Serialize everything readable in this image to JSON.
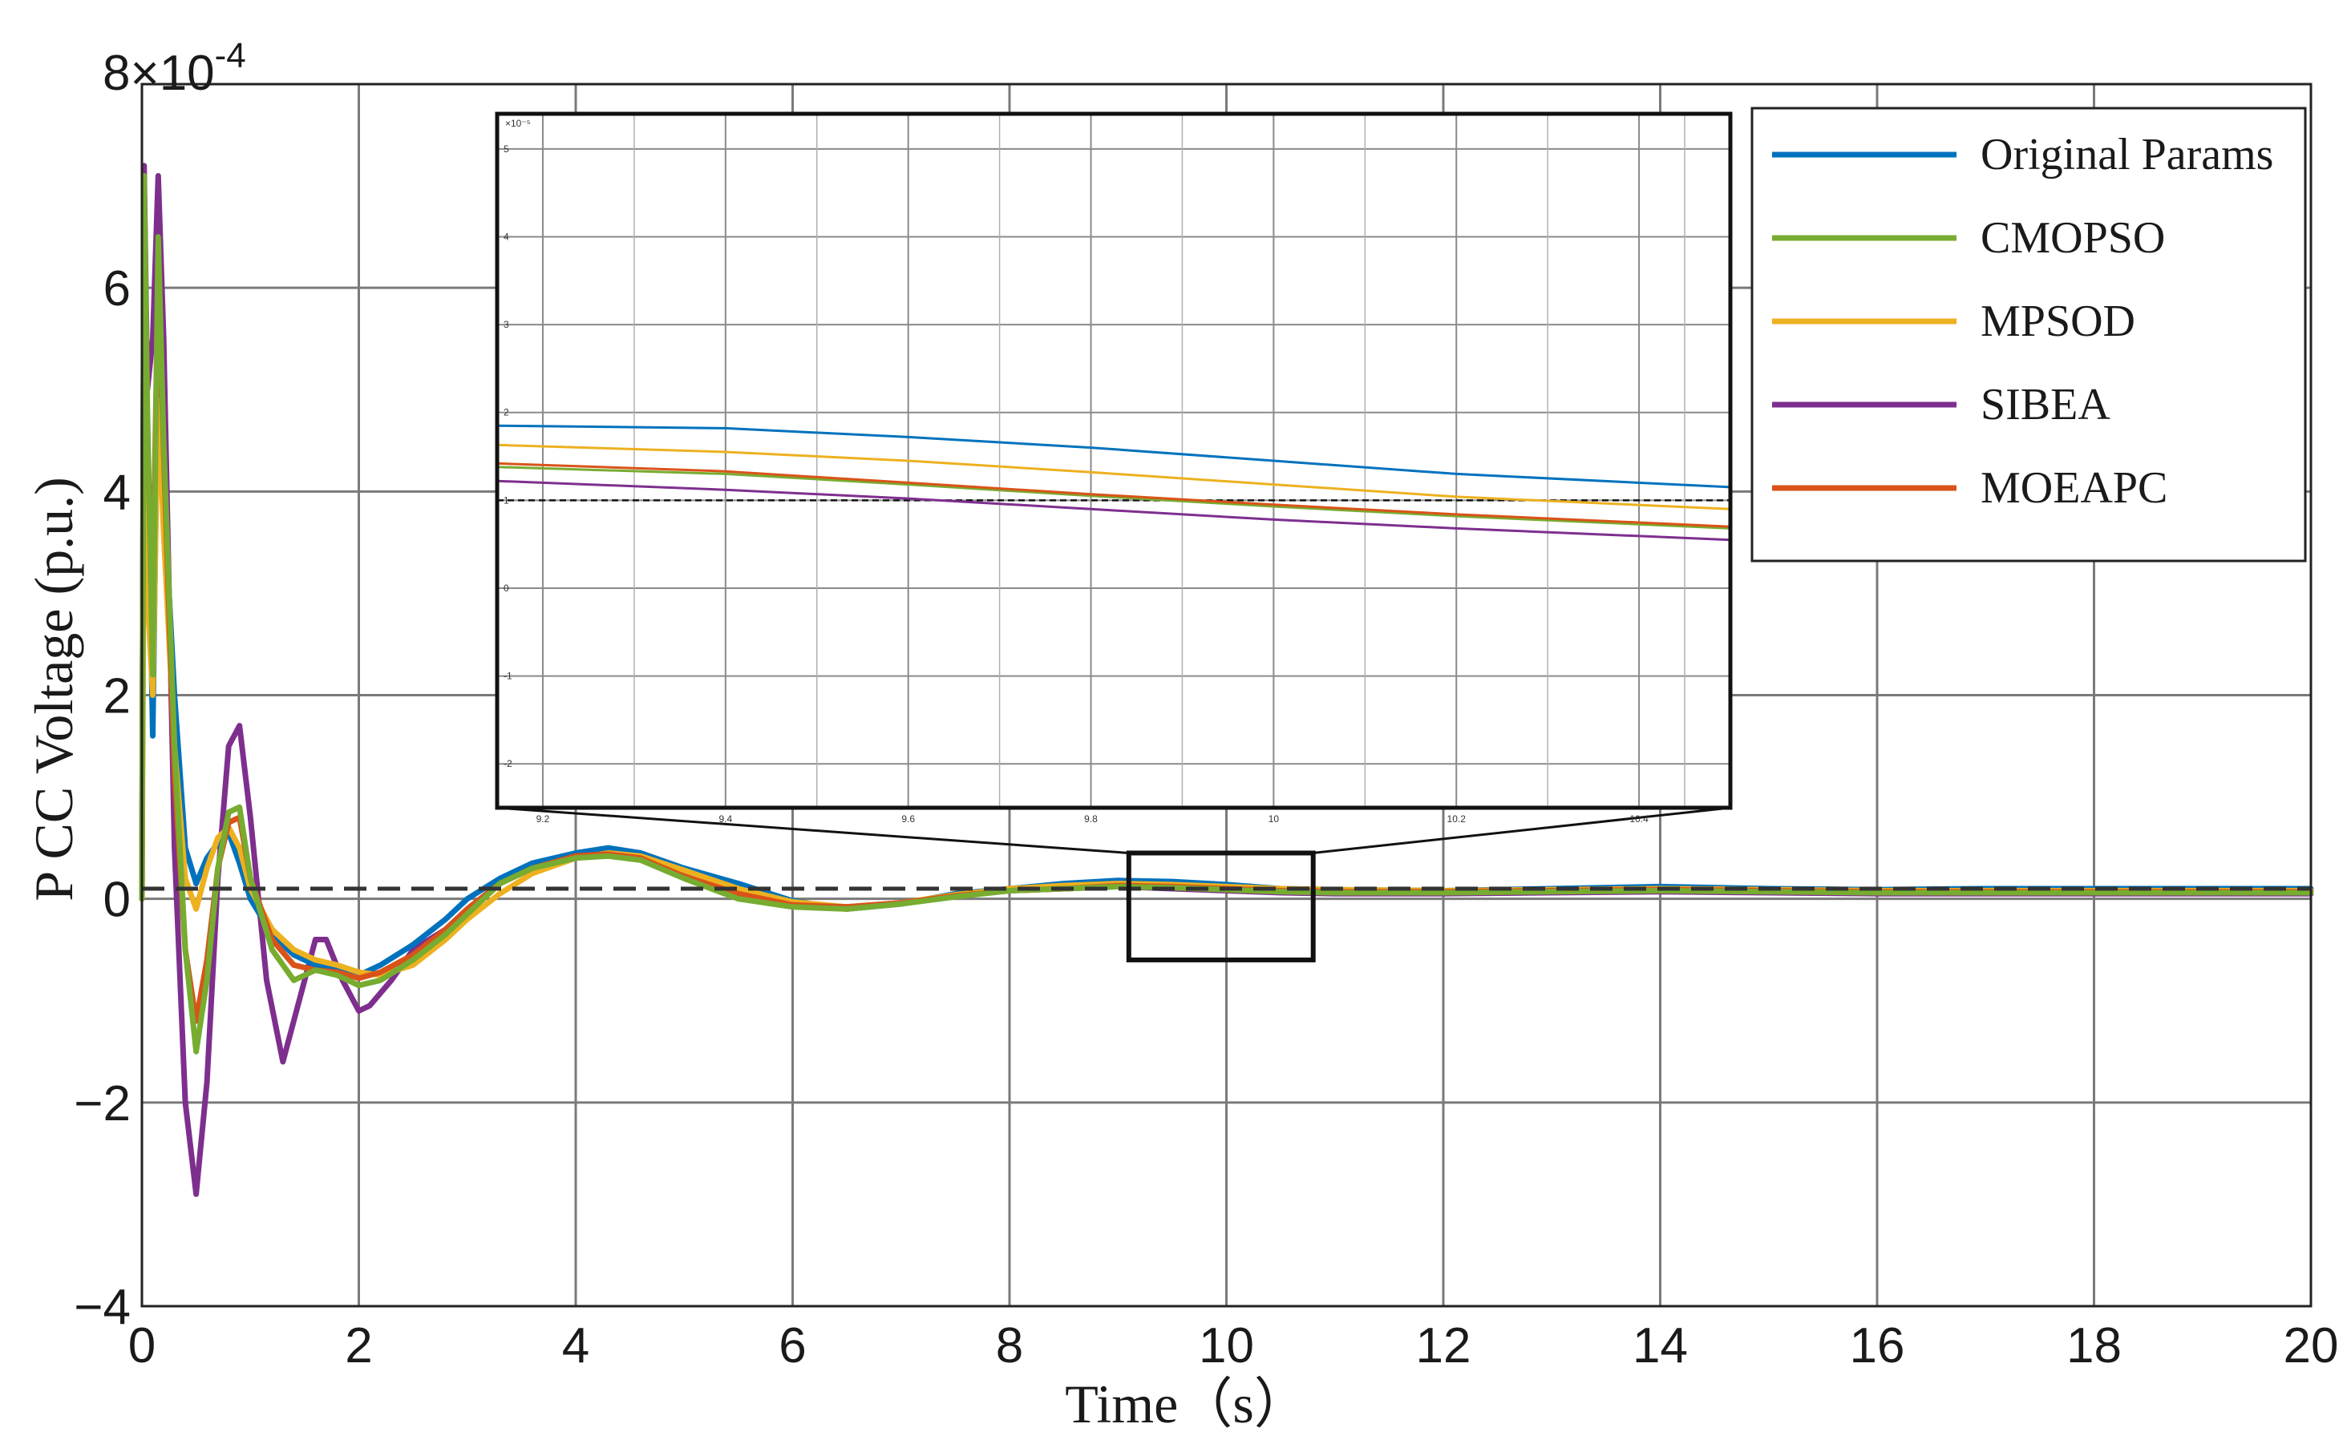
{
  "chart_data": {
    "type": "line",
    "xlabel": "Time（s）",
    "ylabel": "P CC Voltage (p.u.)",
    "y_exponent": "8×10-4",
    "xlim": [
      0,
      20
    ],
    "ylim": [
      -4,
      8
    ],
    "y_scale_note": "values in units of 1e-4 p.u.",
    "x_ticks": [
      "0",
      "2",
      "4",
      "6",
      "8",
      "10",
      "12",
      "14",
      "16",
      "18",
      "20"
    ],
    "y_ticks": [
      "−4",
      "−2",
      "0",
      "2",
      "4",
      "6"
    ],
    "grid": true,
    "legend_position": "top-right",
    "reference_line": {
      "y": 0.1,
      "style": "dashed"
    },
    "zoom_box": {
      "x": [
        9.1,
        10.8
      ],
      "y": [
        -0.6,
        0.45
      ]
    },
    "series": [
      {
        "name": "Original Params",
        "color": "#0072BD",
        "x": [
          0,
          0.02,
          0.05,
          0.1,
          0.15,
          0.2,
          0.3,
          0.4,
          0.5,
          0.6,
          0.7,
          0.8,
          0.9,
          1.0,
          1.2,
          1.4,
          1.6,
          1.8,
          2.0,
          2.2,
          2.5,
          2.8,
          3.0,
          3.3,
          3.6,
          4.0,
          4.3,
          4.6,
          5.0,
          5.5,
          6.0,
          6.5,
          7.0,
          7.5,
          8.0,
          8.5,
          9.0,
          9.5,
          10.0,
          10.5,
          11.0,
          12.0,
          13.0,
          14.0,
          15.0,
          16.0,
          17.0,
          18.0,
          19.0,
          20.0
        ],
        "y": [
          0,
          6.9,
          4.5,
          1.6,
          5.5,
          4.0,
          2.0,
          0.5,
          0.15,
          0.4,
          0.55,
          0.65,
          0.35,
          0.0,
          -0.35,
          -0.55,
          -0.65,
          -0.7,
          -0.75,
          -0.65,
          -0.45,
          -0.2,
          0.0,
          0.2,
          0.35,
          0.45,
          0.5,
          0.45,
          0.3,
          0.15,
          -0.02,
          -0.1,
          -0.05,
          0.05,
          0.1,
          0.15,
          0.18,
          0.17,
          0.14,
          0.1,
          0.09,
          0.08,
          0.1,
          0.12,
          0.1,
          0.09,
          0.1,
          0.1,
          0.1,
          0.1
        ]
      },
      {
        "name": "CMOPSO",
        "color": "#77AC30",
        "x": [
          0,
          0.02,
          0.05,
          0.1,
          0.15,
          0.2,
          0.3,
          0.4,
          0.5,
          0.6,
          0.7,
          0.8,
          0.9,
          1.0,
          1.2,
          1.4,
          1.6,
          1.8,
          2.0,
          2.2,
          2.5,
          2.8,
          3.0,
          3.3,
          3.6,
          4.0,
          4.3,
          4.6,
          5.0,
          5.5,
          6.0,
          6.5,
          7.0,
          7.5,
          8.0,
          8.5,
          9.0,
          9.5,
          10.0,
          10.5,
          11.0,
          12.0,
          13.0,
          14.0,
          15.0,
          16.0,
          17.0,
          18.0,
          19.0,
          20.0
        ],
        "y": [
          0,
          7.1,
          4.8,
          2.2,
          6.5,
          4.5,
          1.5,
          -0.5,
          -1.5,
          -0.8,
          0.3,
          0.85,
          0.9,
          0.2,
          -0.5,
          -0.8,
          -0.7,
          -0.75,
          -0.85,
          -0.8,
          -0.6,
          -0.35,
          -0.15,
          0.15,
          0.3,
          0.4,
          0.42,
          0.38,
          0.2,
          0.0,
          -0.08,
          -0.1,
          -0.05,
          0.02,
          0.08,
          0.1,
          0.12,
          0.11,
          0.09,
          0.07,
          0.06,
          0.06,
          0.07,
          0.08,
          0.07,
          0.06,
          0.06,
          0.06,
          0.06,
          0.06
        ]
      },
      {
        "name": "MPSOD",
        "color": "#EDB120",
        "x": [
          0,
          0.02,
          0.05,
          0.1,
          0.15,
          0.2,
          0.3,
          0.4,
          0.5,
          0.6,
          0.7,
          0.8,
          0.9,
          1.0,
          1.2,
          1.4,
          1.6,
          1.8,
          2.0,
          2.2,
          2.5,
          2.8,
          3.0,
          3.3,
          3.6,
          4.0,
          4.3,
          4.6,
          5.0,
          5.5,
          6.0,
          6.5,
          7.0,
          7.5,
          8.0,
          8.5,
          9.0,
          9.5,
          10.0,
          10.5,
          11.0,
          12.0,
          13.0,
          14.0,
          15.0,
          16.0,
          17.0,
          18.0,
          19.0,
          20.0
        ],
        "y": [
          0,
          4.5,
          3.0,
          2.0,
          4.9,
          3.6,
          1.5,
          0.2,
          -0.1,
          0.3,
          0.6,
          0.7,
          0.5,
          0.1,
          -0.3,
          -0.5,
          -0.6,
          -0.65,
          -0.72,
          -0.75,
          -0.65,
          -0.4,
          -0.2,
          0.05,
          0.25,
          0.4,
          0.45,
          0.42,
          0.28,
          0.1,
          -0.03,
          -0.08,
          -0.04,
          0.04,
          0.1,
          0.13,
          0.15,
          0.14,
          0.12,
          0.1,
          0.09,
          0.08,
          0.09,
          0.1,
          0.09,
          0.08,
          0.08,
          0.08,
          0.08,
          0.08
        ]
      },
      {
        "name": "SIBEA",
        "color": "#7E2F8E",
        "x": [
          0,
          0.02,
          0.05,
          0.1,
          0.15,
          0.2,
          0.3,
          0.4,
          0.5,
          0.6,
          0.7,
          0.8,
          0.9,
          1.0,
          1.15,
          1.3,
          1.45,
          1.6,
          1.7,
          1.85,
          2.0,
          2.1,
          2.3,
          2.5,
          2.8,
          3.0,
          3.3,
          3.6,
          4.0,
          4.3,
          4.6,
          5.0,
          5.5,
          6.0,
          6.5,
          7.0,
          7.5,
          8.0,
          8.5,
          9.0,
          9.5,
          10.0,
          10.5,
          11.0,
          12.0,
          13.0,
          14.0,
          15.0,
          16.0,
          17.0,
          18.0,
          19.0,
          20.0
        ],
        "y": [
          0,
          7.2,
          5.0,
          5.5,
          7.1,
          5.5,
          0.5,
          -2.0,
          -2.9,
          -1.8,
          0.2,
          1.5,
          1.7,
          0.8,
          -0.8,
          -1.6,
          -1.0,
          -0.4,
          -0.4,
          -0.8,
          -1.1,
          -1.05,
          -0.8,
          -0.5,
          -0.3,
          -0.1,
          0.15,
          0.3,
          0.42,
          0.45,
          0.4,
          0.25,
          0.08,
          -0.05,
          -0.08,
          -0.04,
          0.03,
          0.08,
          0.1,
          0.12,
          0.1,
          0.08,
          0.06,
          0.05,
          0.05,
          0.06,
          0.07,
          0.06,
          0.05,
          0.05,
          0.05,
          0.05,
          0.05
        ]
      },
      {
        "name": "MOEAPC",
        "color": "#D95319",
        "x": [
          0,
          0.02,
          0.05,
          0.1,
          0.15,
          0.2,
          0.3,
          0.4,
          0.5,
          0.6,
          0.7,
          0.8,
          0.9,
          1.0,
          1.2,
          1.4,
          1.6,
          1.8,
          2.0,
          2.2,
          2.5,
          2.8,
          3.0,
          3.3,
          3.6,
          4.0,
          4.3,
          4.6,
          5.0,
          5.5,
          6.0,
          6.5,
          7.0,
          7.5,
          8.0,
          8.5,
          9.0,
          9.5,
          10.0,
          10.5,
          11.0,
          12.0,
          13.0,
          14.0,
          15.0,
          16.0,
          17.0,
          18.0,
          19.0,
          20.0
        ],
        "y": [
          0,
          6.5,
          4.5,
          3.0,
          6.2,
          4.4,
          1.2,
          -0.5,
          -1.2,
          -0.6,
          0.3,
          0.75,
          0.8,
          0.2,
          -0.4,
          -0.65,
          -0.7,
          -0.72,
          -0.78,
          -0.72,
          -0.55,
          -0.3,
          -0.1,
          0.15,
          0.3,
          0.42,
          0.44,
          0.4,
          0.22,
          0.05,
          -0.06,
          -0.08,
          -0.04,
          0.03,
          0.08,
          0.1,
          0.13,
          0.12,
          0.1,
          0.08,
          0.07,
          0.07,
          0.08,
          0.09,
          0.08,
          0.07,
          0.07,
          0.07,
          0.07,
          0.07
        ]
      }
    ],
    "inset": {
      "y_exponent": "×10⁻⁵",
      "xlim": [
        9.15,
        10.5
      ],
      "ylim": [
        -2.5,
        5.4
      ],
      "x_ticks": [
        "9.2",
        "9.4",
        "9.6",
        "9.8",
        "10",
        "10.2",
        "10.4"
      ],
      "y_ticks": [
        "-2",
        "-1",
        "0",
        "1",
        "2",
        "3",
        "4",
        "5"
      ],
      "reference_line": {
        "y": 1.0
      },
      "series": [
        {
          "name": "Original Params",
          "color": "#0072BD",
          "x": [
            9.15,
            9.4,
            9.6,
            9.8,
            10.0,
            10.2,
            10.5
          ],
          "y": [
            1.85,
            1.82,
            1.72,
            1.6,
            1.45,
            1.3,
            1.15
          ]
        },
        {
          "name": "CMOPSO",
          "color": "#77AC30",
          "x": [
            9.15,
            9.4,
            9.6,
            9.8,
            10.0,
            10.2,
            10.5
          ],
          "y": [
            1.38,
            1.3,
            1.18,
            1.05,
            0.93,
            0.82,
            0.68
          ]
        },
        {
          "name": "MPSOD",
          "color": "#EDB120",
          "x": [
            9.15,
            9.4,
            9.6,
            9.8,
            10.0,
            10.2,
            10.5
          ],
          "y": [
            1.63,
            1.55,
            1.45,
            1.32,
            1.18,
            1.04,
            0.9
          ]
        },
        {
          "name": "SIBEA",
          "color": "#7E2F8E",
          "x": [
            9.15,
            9.4,
            9.6,
            9.8,
            10.0,
            10.2,
            10.5
          ],
          "y": [
            1.22,
            1.12,
            1.02,
            0.9,
            0.78,
            0.68,
            0.55
          ]
        },
        {
          "name": "MOEAPC",
          "color": "#D95319",
          "x": [
            9.15,
            9.4,
            9.6,
            9.8,
            10.0,
            10.2,
            10.5
          ],
          "y": [
            1.42,
            1.33,
            1.2,
            1.07,
            0.95,
            0.84,
            0.7
          ]
        }
      ]
    }
  }
}
